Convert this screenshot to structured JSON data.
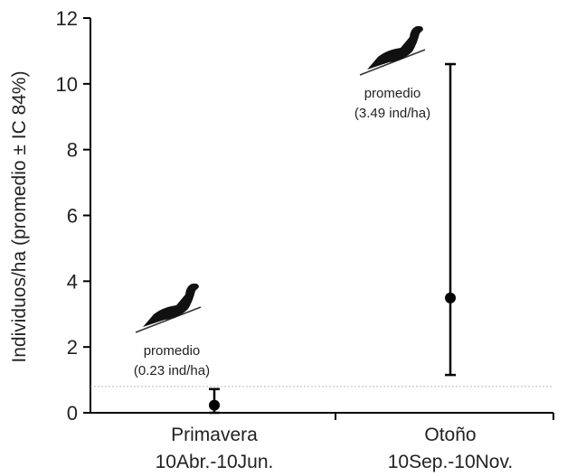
{
  "chart_data": {
    "type": "scatter",
    "ylabel": "Individuos/ha (promedio ± IC 84%)",
    "ylim": [
      0,
      12
    ],
    "yticks": [
      0,
      2,
      4,
      6,
      8,
      10,
      12
    ],
    "grid": false,
    "categories": [
      {
        "line1": "Primavera",
        "line2": "10Abr.-10Jun."
      },
      {
        "line1": "Otoño",
        "line2": "10Sep.-10Nov."
      }
    ],
    "points": [
      {
        "category": "Primavera",
        "mean": 0.23,
        "ci_low": 0.0,
        "ci_high": 0.72
      },
      {
        "category": "Otoño",
        "mean": 3.49,
        "ci_low": 1.15,
        "ci_high": 10.6
      }
    ],
    "reference_line": {
      "y": 0.8,
      "style": "dotted"
    },
    "annotations": [
      {
        "category": "Primavera",
        "line1": "promedio",
        "line2": "(0.23 ind/ha)"
      },
      {
        "category": "Otoño",
        "line1": "promedio",
        "line2": "(3.49 ind/ha)"
      }
    ],
    "icons": [
      "dove-icon",
      "dove-icon"
    ],
    "colors": {
      "marker": "#000000",
      "axis": "#000000",
      "reference": "#bbbbbb"
    }
  }
}
